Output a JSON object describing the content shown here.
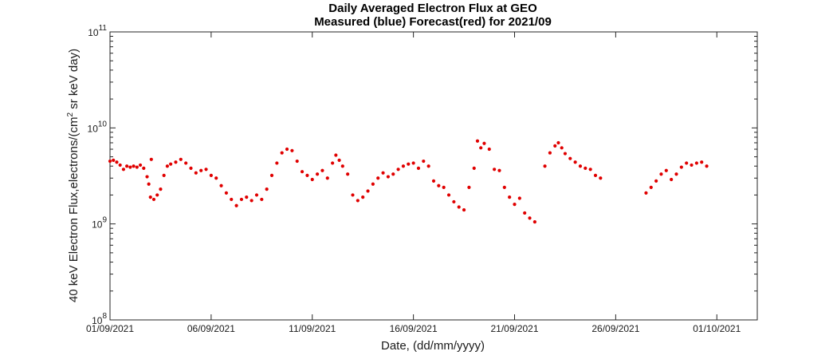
{
  "chart_data": {
    "type": "scatter",
    "title": "Daily Averaged Electron Flux at GEO",
    "subtitle": "Measured (blue) Forecast(red) for 2021/09",
    "xlabel": "Date, (dd/mm/yyyy)",
    "ylabel": {
      "prefix": "40 keV Electron Flux,electrons/(cm",
      "superscript": "2",
      "suffix": " sr keV day)"
    },
    "y_scale": "log",
    "ylim": [
      100000000,
      100000000000
    ],
    "y_ticks": [
      {
        "value": 100000000,
        "base": "10",
        "exp": "8"
      },
      {
        "value": 1000000000,
        "base": "10",
        "exp": "9"
      },
      {
        "value": 10000000000,
        "base": "10",
        "exp": "10"
      },
      {
        "value": 100000000000,
        "base": "10",
        "exp": "11"
      }
    ],
    "xlim": [
      "2021-09-01",
      "2021-10-03"
    ],
    "x_ticks": [
      {
        "value": "2021-09-01",
        "label": "01/09/2021"
      },
      {
        "value": "2021-09-06",
        "label": "06/09/2021"
      },
      {
        "value": "2021-09-11",
        "label": "11/09/2021"
      },
      {
        "value": "2021-09-16",
        "label": "16/09/2021"
      },
      {
        "value": "2021-09-21",
        "label": "21/09/2021"
      },
      {
        "value": "2021-09-26",
        "label": "26/09/2021"
      },
      {
        "value": "2021-10-01",
        "label": "01/10/2021"
      }
    ],
    "grid": false,
    "marker_color": "#e00000",
    "series": [
      {
        "marker": "dot",
        "points": [
          [
            "2021-09-01 00:00",
            4500000000.0
          ],
          [
            "2021-09-01 04:00",
            4600000000.0
          ],
          [
            "2021-09-01 08:00",
            4400000000.0
          ],
          [
            "2021-09-01 12:00",
            4100000000.0
          ],
          [
            "2021-09-01 16:00",
            3700000000.0
          ],
          [
            "2021-09-01 20:00",
            4000000000.0
          ],
          [
            "2021-09-02 00:00",
            3900000000.0
          ],
          [
            "2021-09-02 04:00",
            4000000000.0
          ],
          [
            "2021-09-02 08:00",
            3900000000.0
          ],
          [
            "2021-09-02 12:00",
            4100000000.0
          ],
          [
            "2021-09-02 16:00",
            3800000000.0
          ],
          [
            "2021-09-02 20:00",
            3100000000.0
          ],
          [
            "2021-09-02 22:00",
            2600000000.0
          ],
          [
            "2021-09-03 00:00",
            1900000000.0
          ],
          [
            "2021-09-03 01:00",
            4700000000.0
          ],
          [
            "2021-09-03 04:00",
            1800000000.0
          ],
          [
            "2021-09-03 08:00",
            2000000000.0
          ],
          [
            "2021-09-03 12:00",
            2300000000.0
          ],
          [
            "2021-09-03 16:00",
            3200000000.0
          ],
          [
            "2021-09-03 20:00",
            4000000000.0
          ],
          [
            "2021-09-04 00:00",
            4200000000.0
          ],
          [
            "2021-09-04 06:00",
            4400000000.0
          ],
          [
            "2021-09-04 12:00",
            4700000000.0
          ],
          [
            "2021-09-04 18:00",
            4300000000.0
          ],
          [
            "2021-09-05 00:00",
            3800000000.0
          ],
          [
            "2021-09-05 06:00",
            3400000000.0
          ],
          [
            "2021-09-05 12:00",
            3600000000.0
          ],
          [
            "2021-09-05 18:00",
            3700000000.0
          ],
          [
            "2021-09-06 00:00",
            3200000000.0
          ],
          [
            "2021-09-06 06:00",
            3000000000.0
          ],
          [
            "2021-09-06 12:00",
            2500000000.0
          ],
          [
            "2021-09-06 18:00",
            2100000000.0
          ],
          [
            "2021-09-07 00:00",
            1800000000.0
          ],
          [
            "2021-09-07 06:00",
            1550000000.0
          ],
          [
            "2021-09-07 12:00",
            1800000000.0
          ],
          [
            "2021-09-07 18:00",
            1900000000.0
          ],
          [
            "2021-09-08 00:00",
            1750000000.0
          ],
          [
            "2021-09-08 06:00",
            2000000000.0
          ],
          [
            "2021-09-08 12:00",
            1800000000.0
          ],
          [
            "2021-09-08 18:00",
            2300000000.0
          ],
          [
            "2021-09-09 00:00",
            3200000000.0
          ],
          [
            "2021-09-09 06:00",
            4300000000.0
          ],
          [
            "2021-09-09 12:00",
            5500000000.0
          ],
          [
            "2021-09-09 18:00",
            6000000000.0
          ],
          [
            "2021-09-10 00:00",
            5800000000.0
          ],
          [
            "2021-09-10 06:00",
            4500000000.0
          ],
          [
            "2021-09-10 12:00",
            3500000000.0
          ],
          [
            "2021-09-10 18:00",
            3200000000.0
          ],
          [
            "2021-09-11 00:00",
            2900000000.0
          ],
          [
            "2021-09-11 06:00",
            3300000000.0
          ],
          [
            "2021-09-11 12:00",
            3600000000.0
          ],
          [
            "2021-09-11 18:00",
            3000000000.0
          ],
          [
            "2021-09-12 00:00",
            4300000000.0
          ],
          [
            "2021-09-12 04:00",
            5200000000.0
          ],
          [
            "2021-09-12 08:00",
            4600000000.0
          ],
          [
            "2021-09-12 12:00",
            4000000000.0
          ],
          [
            "2021-09-12 18:00",
            3300000000.0
          ],
          [
            "2021-09-13 00:00",
            2000000000.0
          ],
          [
            "2021-09-13 06:00",
            1750000000.0
          ],
          [
            "2021-09-13 12:00",
            1900000000.0
          ],
          [
            "2021-09-13 18:00",
            2200000000.0
          ],
          [
            "2021-09-14 00:00",
            2600000000.0
          ],
          [
            "2021-09-14 06:00",
            3000000000.0
          ],
          [
            "2021-09-14 12:00",
            3400000000.0
          ],
          [
            "2021-09-14 18:00",
            3100000000.0
          ],
          [
            "2021-09-15 00:00",
            3300000000.0
          ],
          [
            "2021-09-15 06:00",
            3700000000.0
          ],
          [
            "2021-09-15 12:00",
            4000000000.0
          ],
          [
            "2021-09-15 18:00",
            4200000000.0
          ],
          [
            "2021-09-16 00:00",
            4300000000.0
          ],
          [
            "2021-09-16 06:00",
            3800000000.0
          ],
          [
            "2021-09-16 12:00",
            4500000000.0
          ],
          [
            "2021-09-16 18:00",
            4000000000.0
          ],
          [
            "2021-09-17 00:00",
            2800000000.0
          ],
          [
            "2021-09-17 06:00",
            2500000000.0
          ],
          [
            "2021-09-17 12:00",
            2400000000.0
          ],
          [
            "2021-09-17 18:00",
            2000000000.0
          ],
          [
            "2021-09-18 00:00",
            1700000000.0
          ],
          [
            "2021-09-18 06:00",
            1500000000.0
          ],
          [
            "2021-09-18 12:00",
            1400000000.0
          ],
          [
            "2021-09-18 18:00",
            2400000000.0
          ],
          [
            "2021-09-19 00:00",
            3800000000.0
          ],
          [
            "2021-09-19 04:00",
            7300000000.0
          ],
          [
            "2021-09-19 08:00",
            6200000000.0
          ],
          [
            "2021-09-19 12:00",
            6900000000.0
          ],
          [
            "2021-09-19 18:00",
            6000000000.0
          ],
          [
            "2021-09-20 00:00",
            3700000000.0
          ],
          [
            "2021-09-20 06:00",
            3600000000.0
          ],
          [
            "2021-09-20 12:00",
            2400000000.0
          ],
          [
            "2021-09-20 18:00",
            1900000000.0
          ],
          [
            "2021-09-21 00:00",
            1600000000.0
          ],
          [
            "2021-09-21 06:00",
            1850000000.0
          ],
          [
            "2021-09-21 12:00",
            1300000000.0
          ],
          [
            "2021-09-21 18:00",
            1150000000.0
          ],
          [
            "2021-09-22 00:00",
            1050000000.0
          ],
          [
            "2021-09-22 12:00",
            4000000000.0
          ],
          [
            "2021-09-22 18:00",
            5500000000.0
          ],
          [
            "2021-09-23 00:00",
            6500000000.0
          ],
          [
            "2021-09-23 04:00",
            7000000000.0
          ],
          [
            "2021-09-23 08:00",
            6200000000.0
          ],
          [
            "2021-09-23 12:00",
            5400000000.0
          ],
          [
            "2021-09-23 18:00",
            4800000000.0
          ],
          [
            "2021-09-24 00:00",
            4400000000.0
          ],
          [
            "2021-09-24 06:00",
            4000000000.0
          ],
          [
            "2021-09-24 12:00",
            3800000000.0
          ],
          [
            "2021-09-24 18:00",
            3700000000.0
          ],
          [
            "2021-09-25 00:00",
            3200000000.0
          ],
          [
            "2021-09-25 06:00",
            3000000000.0
          ],
          [
            "2021-09-27 12:00",
            2100000000.0
          ],
          [
            "2021-09-27 18:00",
            2400000000.0
          ],
          [
            "2021-09-28 00:00",
            2800000000.0
          ],
          [
            "2021-09-28 06:00",
            3300000000.0
          ],
          [
            "2021-09-28 12:00",
            3600000000.0
          ],
          [
            "2021-09-28 18:00",
            2900000000.0
          ],
          [
            "2021-09-29 00:00",
            3300000000.0
          ],
          [
            "2021-09-29 06:00",
            3900000000.0
          ],
          [
            "2021-09-29 12:00",
            4300000000.0
          ],
          [
            "2021-09-29 18:00",
            4100000000.0
          ],
          [
            "2021-09-30 00:00",
            4300000000.0
          ],
          [
            "2021-09-30 06:00",
            4400000000.0
          ],
          [
            "2021-09-30 12:00",
            4000000000.0
          ]
        ]
      }
    ]
  }
}
